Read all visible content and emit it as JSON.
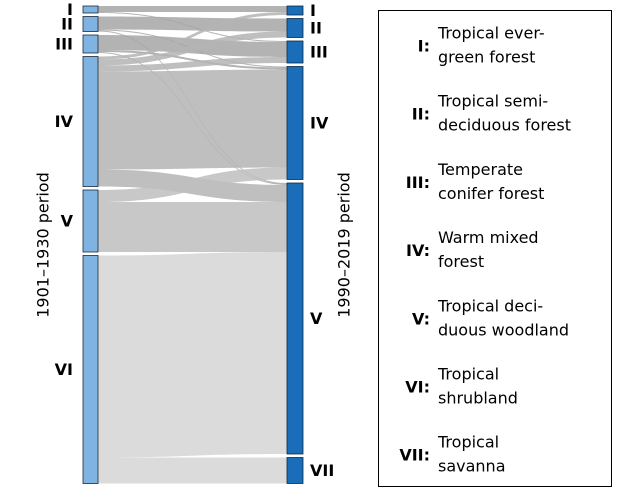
{
  "chart_data": {
    "type": "sankey",
    "left_label": "1901–1930 period",
    "right_label": "1990–2019 period",
    "left_color": "#7fb4e2",
    "right_color": "#1a6db8",
    "left_nodes": [
      {
        "label": "I",
        "value": 7,
        "flow_color": "#a6a6a6"
      },
      {
        "label": "II",
        "value": 15,
        "flow_color": "#a6a6a6"
      },
      {
        "label": "III",
        "value": 18,
        "flow_color": "#a6a6a6"
      },
      {
        "label": "IV",
        "value": 130,
        "flow_color": "#b4b4b4"
      },
      {
        "label": "V",
        "value": 62,
        "flow_color": "#bebebe"
      },
      {
        "label": "VI",
        "value": 228,
        "flow_color": "#d5d5d5"
      }
    ],
    "right_nodes": [
      {
        "label": "I",
        "value": 9
      },
      {
        "label": "II",
        "value": 19
      },
      {
        "label": "III",
        "value": 22
      },
      {
        "label": "IV",
        "value": 113
      },
      {
        "label": "V",
        "value": 271
      },
      {
        "label": "VII",
        "value": 26
      }
    ],
    "flows": [
      {
        "from": "I",
        "to": "I",
        "value": 6
      },
      {
        "from": "I",
        "to": "III",
        "value": 1
      },
      {
        "from": "II",
        "to": "II",
        "value": 13
      },
      {
        "from": "II",
        "to": "IV",
        "value": 1
      },
      {
        "from": "II",
        "to": "V",
        "value": 1
      },
      {
        "from": "III",
        "to": "III",
        "value": 15
      },
      {
        "from": "III",
        "to": "IV",
        "value": 2
      },
      {
        "from": "III",
        "to": "V",
        "value": 1
      },
      {
        "from": "IV",
        "to": "I",
        "value": 3
      },
      {
        "from": "IV",
        "to": "II",
        "value": 6
      },
      {
        "from": "IV",
        "to": "III",
        "value": 6
      },
      {
        "from": "IV",
        "to": "IV",
        "value": 98
      },
      {
        "from": "IV",
        "to": "V",
        "value": 17
      },
      {
        "from": "V",
        "to": "IV",
        "value": 12
      },
      {
        "from": "V",
        "to": "V",
        "value": 50
      },
      {
        "from": "VI",
        "to": "V",
        "value": 202
      },
      {
        "from": "VI",
        "to": "VII",
        "value": 26
      }
    ],
    "legend": [
      {
        "key": "I:",
        "lines": [
          "Tropical ever-",
          "green forest"
        ]
      },
      {
        "key": "II:",
        "lines": [
          "Tropical semi-",
          "deciduous forest"
        ]
      },
      {
        "key": "III:",
        "lines": [
          "Temperate",
          "conifer forest"
        ]
      },
      {
        "key": "IV:",
        "lines": [
          "Warm mixed",
          "forest"
        ]
      },
      {
        "key": "V:",
        "lines": [
          "Tropical deci-",
          "duous woodland"
        ]
      },
      {
        "key": "VI:",
        "lines": [
          "Tropical",
          "shrubland"
        ]
      },
      {
        "key": "VII:",
        "lines": [
          "Tropical",
          "savanna"
        ]
      }
    ]
  }
}
